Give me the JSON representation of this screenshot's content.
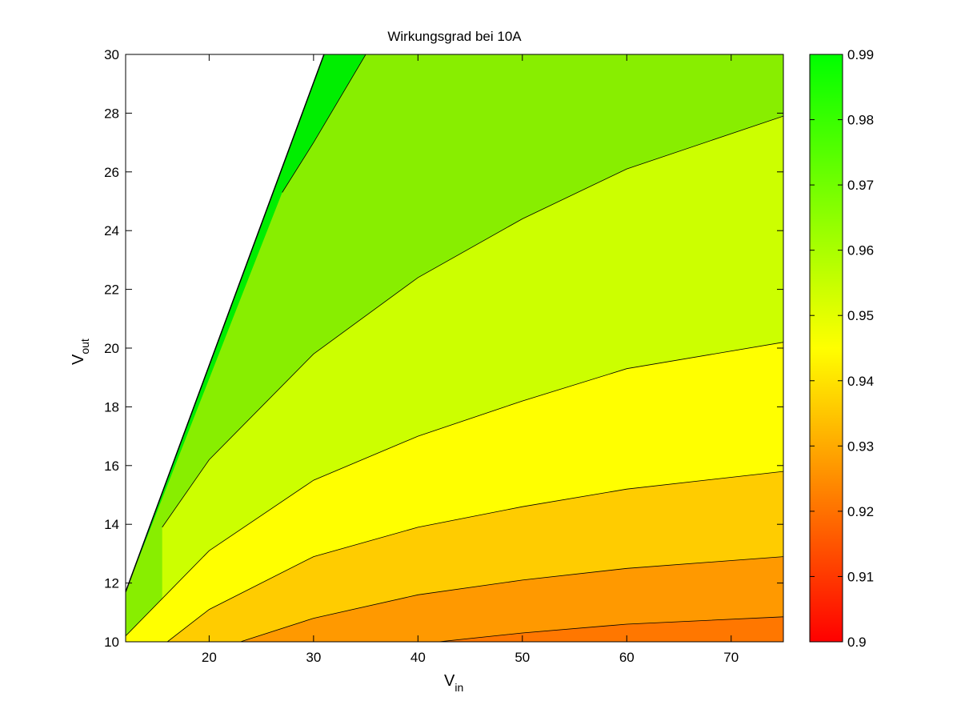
{
  "chart_data": {
    "type": "contourf",
    "title": "Wirkungsgrad bei 10A",
    "xlabel": {
      "main": "V",
      "sub": "in"
    },
    "ylabel": {
      "main": "V",
      "sub": "out"
    },
    "xlim": [
      12,
      75
    ],
    "ylim": [
      10,
      30
    ],
    "x_ticks": [
      20,
      30,
      40,
      50,
      60,
      70
    ],
    "y_ticks": [
      10,
      12,
      14,
      16,
      18,
      20,
      22,
      24,
      26,
      28,
      30
    ],
    "colorbar": {
      "min": 0.9,
      "max": 0.99,
      "ticks": [
        0.9,
        0.91,
        0.92,
        0.93,
        0.94,
        0.95,
        0.96,
        0.97,
        0.98,
        0.99
      ],
      "tick_labels": [
        "0.9",
        "0.91",
        "0.92",
        "0.93",
        "0.94",
        "0.95",
        "0.96",
        "0.97",
        "0.98",
        "0.99"
      ],
      "colormap": [
        "#ff0000",
        "#ffff00",
        "#00ff00"
      ]
    },
    "valid_region": "V_out < 0.3 + 0.951 * V_in (white above)",
    "levels": [
      {
        "level": 0.935,
        "color": "#ff7700",
        "boundary": [
          [
            42,
            10
          ],
          [
            50,
            10.3
          ],
          [
            60,
            10.6
          ],
          [
            75,
            10.85
          ]
        ]
      },
      {
        "level": 0.94,
        "color": "#ff9900",
        "boundary": [
          [
            23,
            10
          ],
          [
            30,
            10.8
          ],
          [
            40,
            11.6
          ],
          [
            50,
            12.1
          ],
          [
            60,
            12.5
          ],
          [
            75,
            12.9
          ]
        ]
      },
      {
        "level": 0.95,
        "color": "#ffcc00",
        "boundary": [
          [
            16,
            10
          ],
          [
            20,
            11.1
          ],
          [
            30,
            12.9
          ],
          [
            40,
            13.9
          ],
          [
            50,
            14.6
          ],
          [
            60,
            15.2
          ],
          [
            75,
            15.8
          ]
        ]
      },
      {
        "level": 0.96,
        "color": "#ffff00",
        "boundary": [
          [
            12,
            10.2
          ],
          [
            20,
            13.1
          ],
          [
            30,
            15.5
          ],
          [
            40,
            17.0
          ],
          [
            50,
            18.2
          ],
          [
            60,
            19.3
          ],
          [
            75,
            20.2
          ]
        ]
      },
      {
        "level": 0.97,
        "color": "#ccff00",
        "boundary": [
          [
            15.5,
            13.9
          ],
          [
            20,
            16.2
          ],
          [
            30,
            19.8
          ],
          [
            40,
            22.4
          ],
          [
            50,
            24.4
          ],
          [
            60,
            26.1
          ],
          [
            75,
            27.9
          ]
        ]
      },
      {
        "level": 0.98,
        "color": "#88ee00",
        "boundary": [
          [
            27,
            25.3
          ],
          [
            30,
            27.0
          ],
          [
            35,
            30
          ]
        ]
      },
      {
        "level": 0.99,
        "color": "#00ee00",
        "boundary": []
      }
    ]
  }
}
